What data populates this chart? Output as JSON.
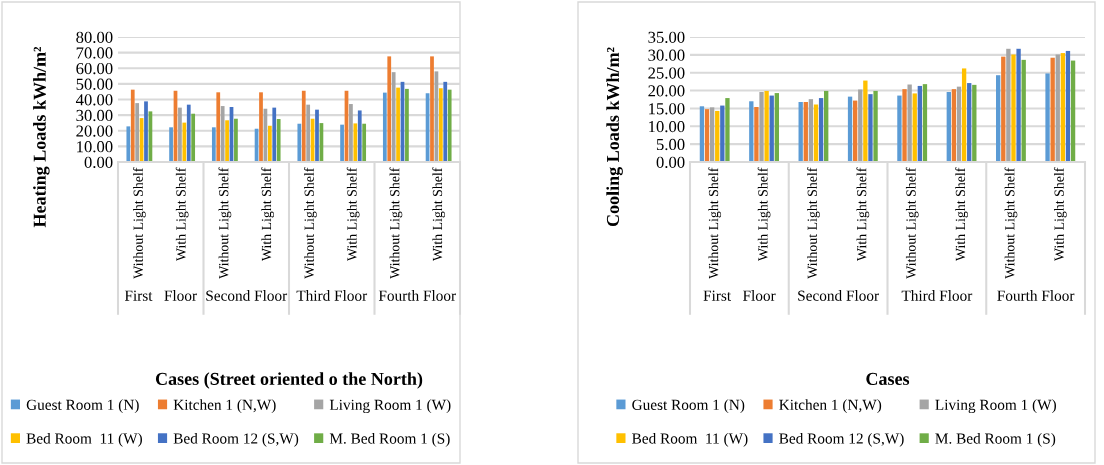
{
  "chart_data": [
    {
      "type": "bar",
      "xlabel": "Cases (Street oriented o the North)",
      "ylabel": "Heating Loads kWh/m²",
      "categories": [
        "Without Light Shelf",
        "With Light Shelf",
        "Without Light Shelf",
        "With Light Shelf",
        "Without Light Shelf",
        "With Light Shelf",
        "Without Light Shelf",
        "With Light Shelf"
      ],
      "annotations": [
        "First   Floor",
        "Second Floor",
        "Third Floor",
        "Fourth Floor"
      ],
      "series": [
        {
          "name": "Guest Room 1 (N)",
          "color": "#5b9bd5",
          "values": [
            22.8,
            22.2,
            22.2,
            21.3,
            24.5,
            23.9,
            44.4,
            44.0
          ]
        },
        {
          "name": "Kitchen 1 (N,W)",
          "color": "#ed7d31",
          "values": [
            46.3,
            45.6,
            44.6,
            44.6,
            45.6,
            45.6,
            67.6,
            67.6
          ]
        },
        {
          "name": "Living Room 1 (W)",
          "color": "#a5a5a5",
          "values": [
            37.7,
            34.8,
            35.8,
            34.1,
            36.7,
            37.1,
            57.5,
            58.0
          ]
        },
        {
          "name": "Bed Room  11 (W)",
          "color": "#ffc000",
          "values": [
            28.1,
            25.2,
            26.7,
            23.2,
            27.7,
            24.7,
            47.6,
            47.2
          ]
        },
        {
          "name": "Bed Room 12 (S,W)",
          "color": "#4472c4",
          "values": [
            38.8,
            36.7,
            35.2,
            34.8,
            33.5,
            33.0,
            51.3,
            51.3
          ]
        },
        {
          "name": "M. Bed Room 1 (S)",
          "color": "#70ad47",
          "values": [
            32.4,
            30.9,
            27.7,
            27.5,
            24.9,
            24.5,
            46.8,
            46.3
          ]
        }
      ],
      "ylim": [
        0,
        80
      ],
      "yticks": [
        {
          "value": 0,
          "label": "0.00"
        },
        {
          "value": 10,
          "label": "10.00"
        },
        {
          "value": 20,
          "label": "20.00"
        },
        {
          "value": 30,
          "label": "30.00"
        },
        {
          "value": 40,
          "label": "40.00"
        },
        {
          "value": 50,
          "label": "50.00"
        },
        {
          "value": 60,
          "label": "60.00"
        },
        {
          "value": 70,
          "label": "70.00"
        },
        {
          "value": 80,
          "label": "80.00"
        }
      ],
      "grid": "y",
      "legend": "bottom"
    },
    {
      "type": "bar",
      "xlabel": "Cases",
      "ylabel": "Cooling Loads kWh/m²",
      "categories": [
        "Without Light Shelf",
        "With Light Shelf",
        "Without Light Shelf",
        "With Light Shelf",
        "Without Light Shelf",
        "With Light Shelf",
        "Without Light Shelf",
        "With Light Shelf"
      ],
      "annotations": [
        "First   Floor",
        "Second Floor",
        "Third Floor",
        "Fourth Floor"
      ],
      "series": [
        {
          "name": "Guest Room 1 (N)",
          "color": "#5b9bd5",
          "values": [
            15.6,
            17.0,
            16.8,
            18.3,
            18.6,
            19.6,
            24.3,
            24.8
          ]
        },
        {
          "name": "Kitchen 1 (N,W)",
          "color": "#ed7d31",
          "values": [
            14.8,
            15.4,
            16.8,
            17.2,
            20.4,
            20.4,
            29.5,
            29.2
          ]
        },
        {
          "name": "Living Room 1 (W)",
          "color": "#a5a5a5",
          "values": [
            15.3,
            19.6,
            17.6,
            20.3,
            21.7,
            21.1,
            31.7,
            30.1
          ]
        },
        {
          "name": "Bed Room  11 (W)",
          "color": "#ffc000",
          "values": [
            14.3,
            19.9,
            16.1,
            22.8,
            19.2,
            26.2,
            30.1,
            30.5
          ]
        },
        {
          "name": "Bed Room 12 (S,W)",
          "color": "#4472c4",
          "values": [
            15.8,
            18.6,
            17.9,
            19.0,
            21.3,
            22.1,
            31.7,
            31.1
          ]
        },
        {
          "name": "M. Bed Room 1 (S)",
          "color": "#70ad47",
          "values": [
            17.9,
            19.3,
            19.9,
            19.9,
            21.8,
            21.6,
            28.6,
            28.4
          ]
        }
      ],
      "ylim": [
        0,
        35
      ],
      "yticks": [
        {
          "value": 0,
          "label": "0.00"
        },
        {
          "value": 5,
          "label": "5.00"
        },
        {
          "value": 10,
          "label": "10.00"
        },
        {
          "value": 15,
          "label": "15.00"
        },
        {
          "value": 20,
          "label": "20.00"
        },
        {
          "value": 25,
          "label": "25.00"
        },
        {
          "value": 30,
          "label": "30.00"
        },
        {
          "value": 35,
          "label": "35.00"
        }
      ],
      "grid": "y",
      "legend": "bottom"
    }
  ]
}
